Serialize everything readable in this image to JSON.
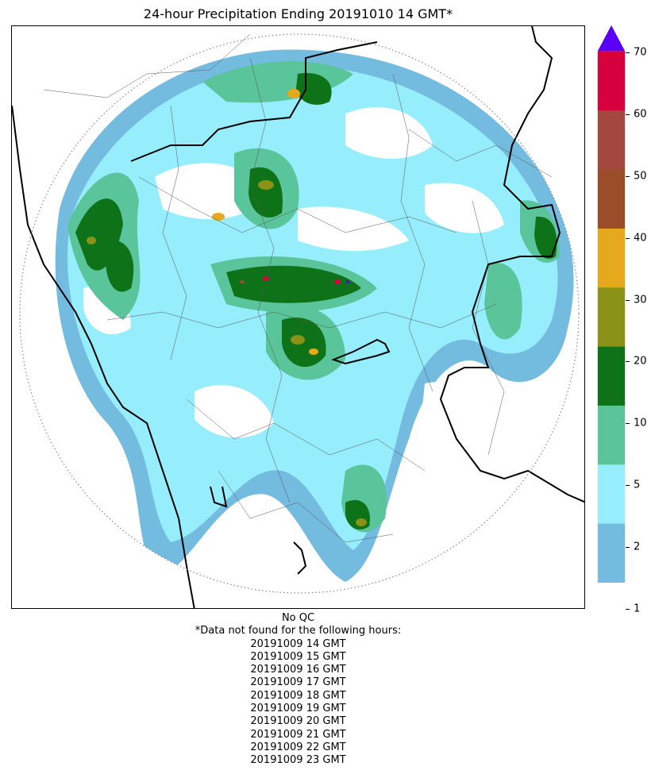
{
  "title": "24-hour Precipitation Ending 20191010 14 GMT*",
  "map": {
    "description_icon": "radar-precipitation-map",
    "radar_range_ring": "dotted"
  },
  "colorbar": {
    "ticks": [
      "1",
      "2",
      "5",
      "10",
      "20",
      "30",
      "40",
      "50",
      "60",
      "70"
    ],
    "bins": [
      {
        "from": 1,
        "to": 2,
        "color": "#74bbe0"
      },
      {
        "from": 2,
        "to": 5,
        "color": "#96eefc"
      },
      {
        "from": 5,
        "to": 10,
        "color": "#5ac49a"
      },
      {
        "from": 10,
        "to": 20,
        "color": "#0e7218"
      },
      {
        "from": 20,
        "to": 30,
        "color": "#8a9318"
      },
      {
        "from": 30,
        "to": 40,
        "color": "#e6a81c"
      },
      {
        "from": 40,
        "to": 50,
        "color": "#9a4d28"
      },
      {
        "from": 50,
        "to": 60,
        "color": "#a3483f"
      },
      {
        "from": 60,
        "to": 70,
        "color": "#d6003f"
      }
    ],
    "overflow_color": "#5a00f5"
  },
  "footnote": {
    "qc": "No QC",
    "missing_header": "*Data not found for the following hours:",
    "missing_hours": [
      "20191009 14 GMT",
      "20191009 15 GMT",
      "20191009 16 GMT",
      "20191009 17 GMT",
      "20191009 18 GMT",
      "20191009 19 GMT",
      "20191009 20 GMT",
      "20191009 21 GMT",
      "20191009 22 GMT",
      "20191009 23 GMT"
    ]
  }
}
